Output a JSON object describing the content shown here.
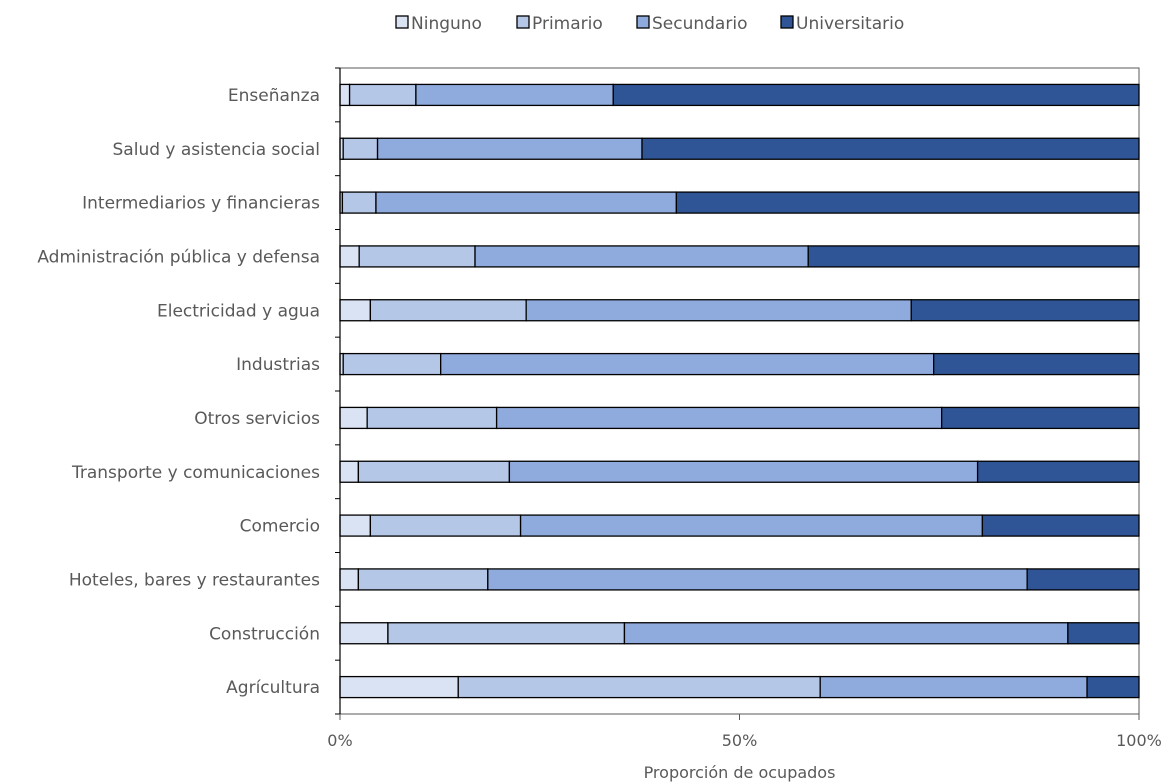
{
  "chart_data": {
    "type": "bar",
    "orientation": "horizontal",
    "stacked": "percent",
    "title": "",
    "xlabel": "Proporción de ocupados",
    "ylabel": "",
    "xlim": [
      0,
      1
    ],
    "xticks": [
      0,
      0.5,
      1
    ],
    "xtick_labels": [
      "0%",
      "50%",
      "100%"
    ],
    "grid": false,
    "legend_position": "top",
    "categories": [
      "Enseñanza",
      "Salud y asistencia social",
      "Intermediarios y financieras",
      "Administración pública y defensa",
      "Electricidad y agua",
      "Industrias",
      "Otros servicios",
      "Transporte y comunicaciones",
      "Comercio",
      "Hoteles, bares y restaurantes",
      "Construcción",
      "Agrícultura"
    ],
    "series": [
      {
        "name": "Ninguno",
        "color": "#dae3f3",
        "values": [
          0.012,
          0.004,
          0.003,
          0.024,
          0.038,
          0.004,
          0.034,
          0.023,
          0.038,
          0.023,
          0.06,
          0.148
        ]
      },
      {
        "name": "Primario",
        "color": "#b4c7e7",
        "values": [
          0.083,
          0.043,
          0.042,
          0.145,
          0.195,
          0.122,
          0.162,
          0.189,
          0.188,
          0.162,
          0.296,
          0.453
        ]
      },
      {
        "name": "Secundario",
        "color": "#8faadc",
        "values": [
          0.247,
          0.331,
          0.376,
          0.417,
          0.482,
          0.617,
          0.557,
          0.586,
          0.578,
          0.675,
          0.555,
          0.334
        ]
      },
      {
        "name": "Universitario",
        "color": "#2f5597",
        "values": [
          0.658,
          0.622,
          0.579,
          0.414,
          0.285,
          0.257,
          0.247,
          0.202,
          0.196,
          0.14,
          0.089,
          0.065
        ]
      }
    ]
  }
}
